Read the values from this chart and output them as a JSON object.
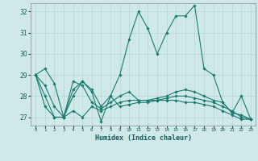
{
  "xlabel": "Humidex (Indice chaleur)",
  "ylabel": "",
  "background_color": "#cfe8e8",
  "grid_color": "#b8d4d4",
  "line_color": "#1a7a6e",
  "xlim": [
    -0.5,
    23.5
  ],
  "ylim": [
    26.6,
    32.4
  ],
  "yticks": [
    27,
    28,
    29,
    30,
    31,
    32
  ],
  "xticks": [
    0,
    1,
    2,
    3,
    4,
    5,
    6,
    7,
    8,
    9,
    10,
    11,
    12,
    13,
    14,
    15,
    16,
    17,
    18,
    19,
    20,
    21,
    22,
    23
  ],
  "xtick_labels": [
    "0",
    "1",
    "2",
    "3",
    "4",
    "5",
    "6",
    "7",
    "8",
    "9",
    "10",
    "11",
    "12",
    "13",
    "14",
    "15",
    "16",
    "17",
    "18",
    "19",
    "20",
    "21",
    "22",
    "23"
  ],
  "lines": [
    [
      29.0,
      29.3,
      28.6,
      27.0,
      28.3,
      28.7,
      28.3,
      27.5,
      28.0,
      29.0,
      30.7,
      32.0,
      31.2,
      30.0,
      31.0,
      31.8,
      31.8,
      32.3,
      29.3,
      29.0,
      27.7,
      27.2,
      28.0,
      26.9
    ],
    [
      29.0,
      28.0,
      27.0,
      27.0,
      28.0,
      28.7,
      28.2,
      26.8,
      28.0,
      27.5,
      27.6,
      27.7,
      27.7,
      27.8,
      27.9,
      28.0,
      28.0,
      27.9,
      27.8,
      27.7,
      27.5,
      27.3,
      27.0,
      26.9
    ],
    [
      29.0,
      27.5,
      27.0,
      27.0,
      27.3,
      27.0,
      27.5,
      27.3,
      27.5,
      27.7,
      27.8,
      27.8,
      27.8,
      27.8,
      27.8,
      27.8,
      27.7,
      27.7,
      27.6,
      27.5,
      27.3,
      27.1,
      26.9,
      26.9
    ],
    [
      29.0,
      28.5,
      27.5,
      27.0,
      28.7,
      28.5,
      27.7,
      27.4,
      27.7,
      28.0,
      28.2,
      27.8,
      27.8,
      27.9,
      28.0,
      28.2,
      28.3,
      28.2,
      28.0,
      27.8,
      27.7,
      27.2,
      27.1,
      26.9
    ]
  ]
}
